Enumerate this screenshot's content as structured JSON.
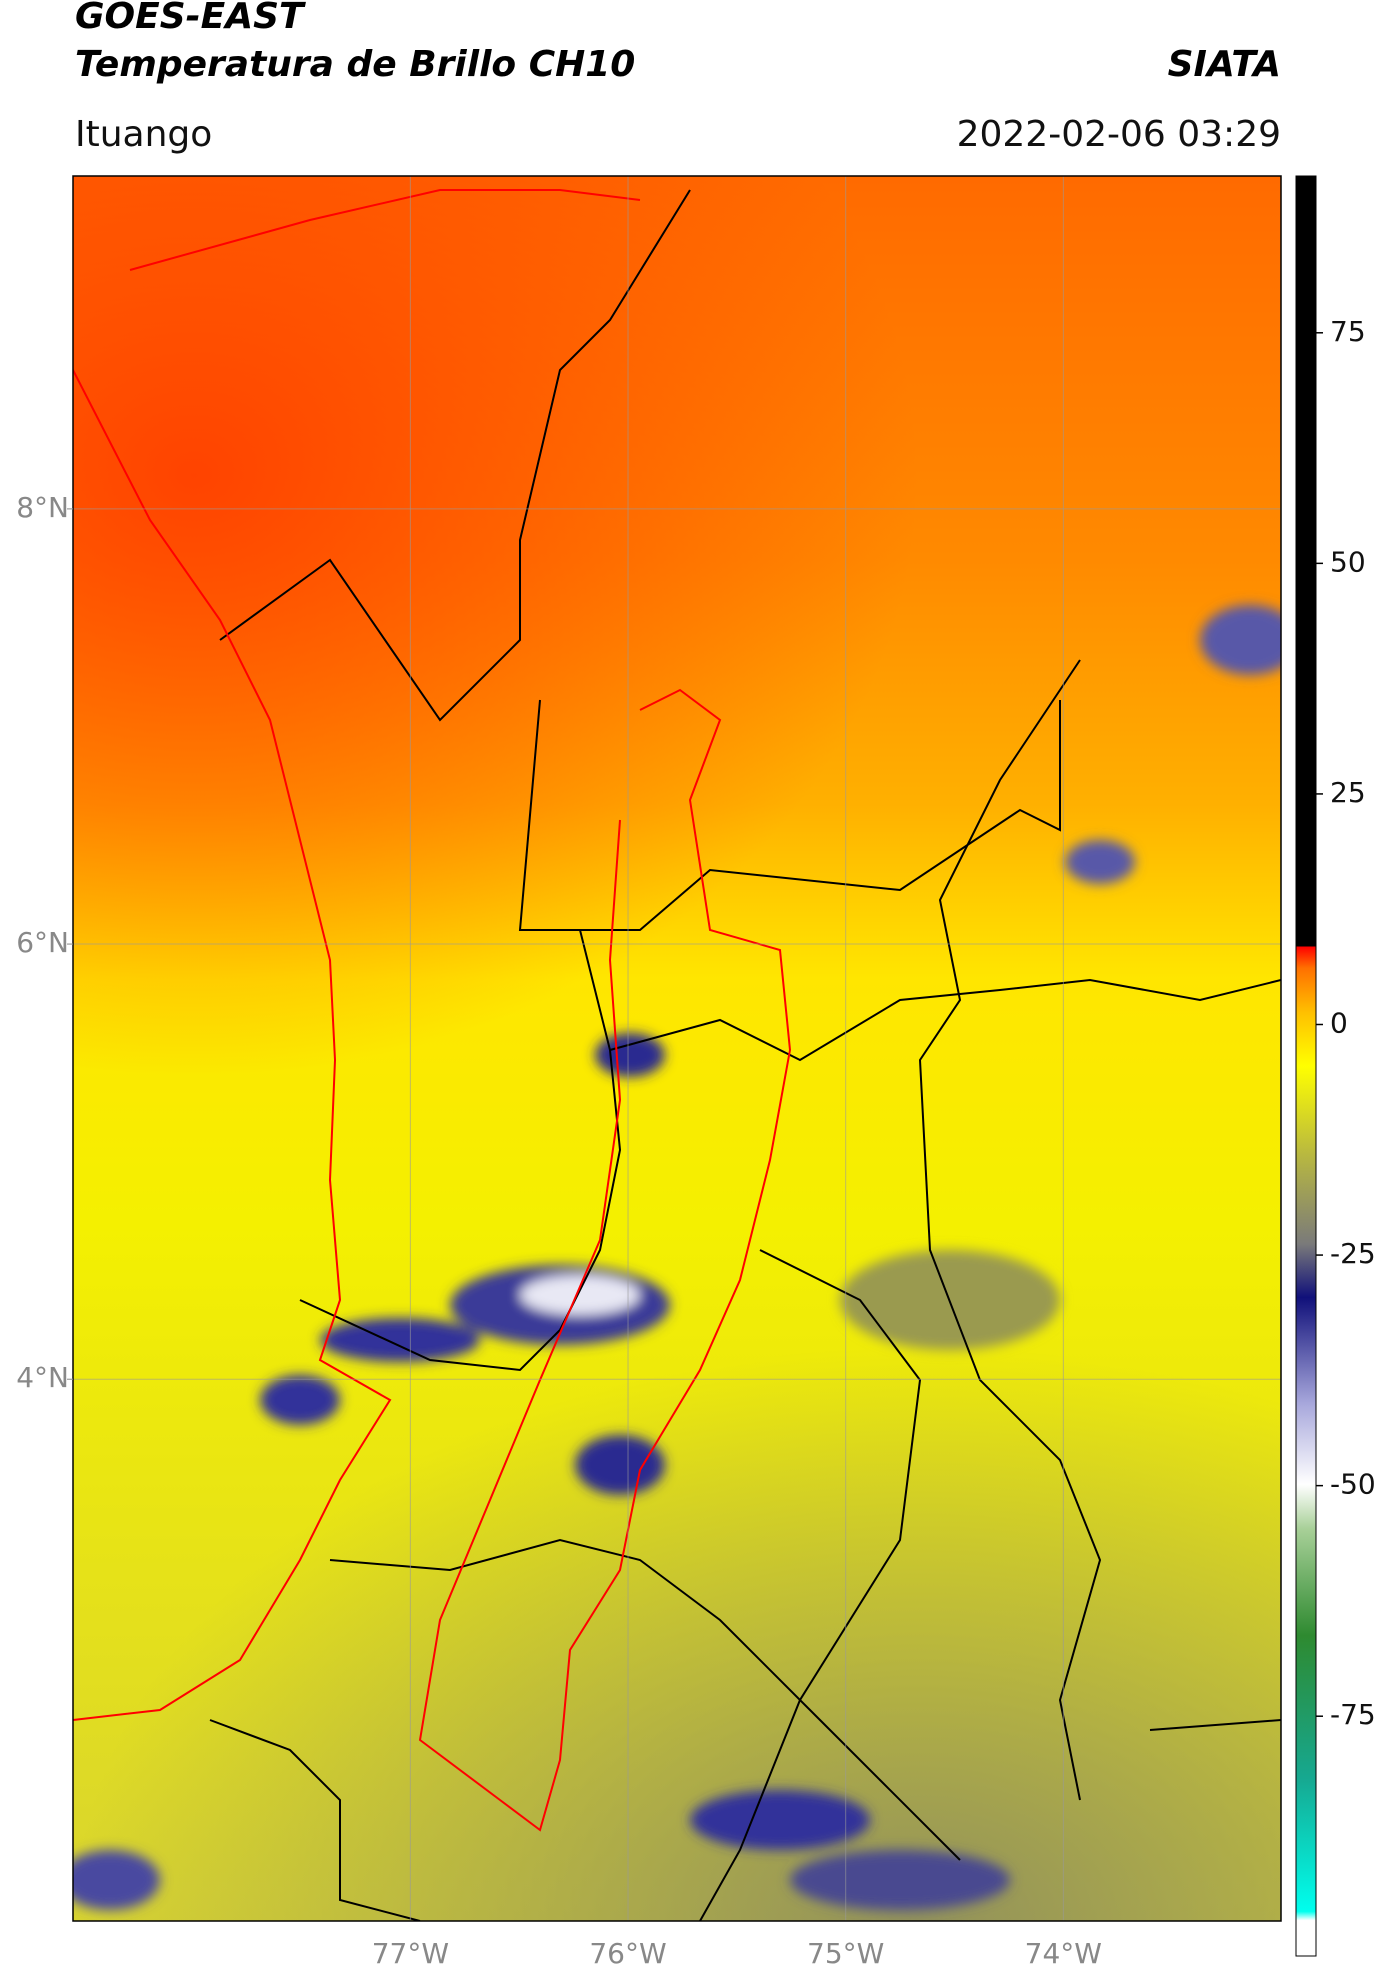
{
  "header": {
    "title": "GOES-EAST",
    "subtitle": "Temperatura de Brillo CH10",
    "source": "SIATA",
    "location": "Ituango",
    "datetime": "2022-02-06 03:29"
  },
  "map": {
    "xlim": [
      -78.55,
      -73.0
    ],
    "ylim": [
      1.51,
      9.53
    ],
    "xticks": [
      {
        "value": -77,
        "label": "77°W"
      },
      {
        "value": -76,
        "label": "76°W"
      },
      {
        "value": -75,
        "label": "75°W"
      },
      {
        "value": -74,
        "label": "74°W"
      }
    ],
    "yticks": [
      {
        "value": 8,
        "label": "8°N"
      },
      {
        "value": 6,
        "label": "6°N"
      },
      {
        "value": 4,
        "label": "4°N"
      }
    ]
  },
  "colorbar": {
    "lim": [
      -101,
      92
    ],
    "ticks": [
      75,
      50,
      25,
      0,
      -25,
      -50,
      -75
    ]
  }
}
